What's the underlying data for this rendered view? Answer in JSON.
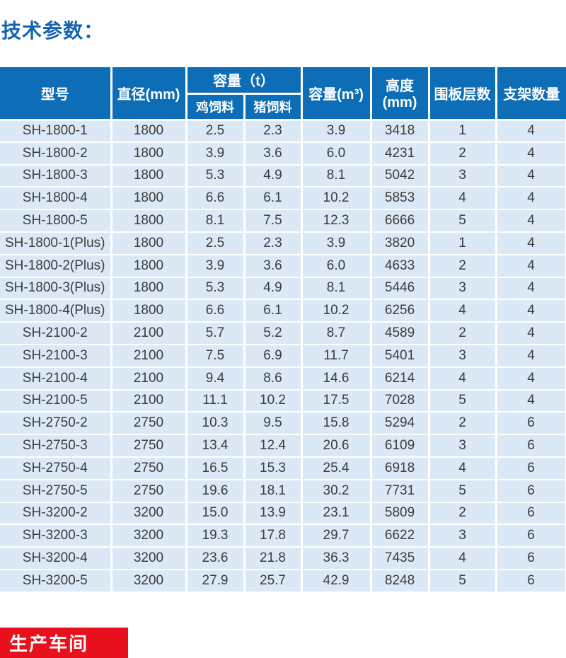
{
  "page": {
    "title": "技术参数：",
    "colors": {
      "title_blue": "#1263b2",
      "header_blue": "#0d6db6",
      "row_bg_light_blue": "#dbe8f5",
      "body_text": "#3c3c3c",
      "banner_red": "#e8101c"
    }
  },
  "table": {
    "headers": {
      "model": "型号",
      "diameter": "直径(mm)",
      "capacity_t_group": "容量（t）",
      "chicken_feed": "鸡饲料",
      "pig_feed": "猪饲料",
      "capacity_m3": "容量(m³)",
      "height": "高度(mm)",
      "panel_layers": "围板层数",
      "bracket_count": "支架数量"
    },
    "column_keys": [
      "model",
      "diameter-mm",
      "chicken-feed-t",
      "pig-feed-t",
      "capacity-m3",
      "height-mm",
      "panel-layers",
      "bracket-count"
    ],
    "rows": [
      [
        "SH-1800-1",
        "1800",
        "2.5",
        "2.3",
        "3.9",
        "3418",
        "1",
        "4"
      ],
      [
        "SH-1800-2",
        "1800",
        "3.9",
        "3.6",
        "6.0",
        "4231",
        "2",
        "4"
      ],
      [
        "SH-1800-3",
        "1800",
        "5.3",
        "4.9",
        "8.1",
        "5042",
        "3",
        "4"
      ],
      [
        "SH-1800-4",
        "1800",
        "6.6",
        "6.1",
        "10.2",
        "5853",
        "4",
        "4"
      ],
      [
        "SH-1800-5",
        "1800",
        "8.1",
        "7.5",
        "12.3",
        "6666",
        "5",
        "4"
      ],
      [
        "SH-1800-1(Plus)",
        "1800",
        "2.5",
        "2.3",
        "3.9",
        "3820",
        "1",
        "4"
      ],
      [
        "SH-1800-2(Plus)",
        "1800",
        "3.9",
        "3.6",
        "6.0",
        "4633",
        "2",
        "4"
      ],
      [
        "SH-1800-3(Plus)",
        "1800",
        "5.3",
        "4.9",
        "8.1",
        "5446",
        "3",
        "4"
      ],
      [
        "SH-1800-4(Plus)",
        "1800",
        "6.6",
        "6.1",
        "10.2",
        "6256",
        "4",
        "4"
      ],
      [
        "SH-2100-2",
        "2100",
        "5.7",
        "5.2",
        "8.7",
        "4589",
        "2",
        "4"
      ],
      [
        "SH-2100-3",
        "2100",
        "7.5",
        "6.9",
        "11.7",
        "5401",
        "3",
        "4"
      ],
      [
        "SH-2100-4",
        "2100",
        "9.4",
        "8.6",
        "14.6",
        "6214",
        "4",
        "4"
      ],
      [
        "SH-2100-5",
        "2100",
        "11.1",
        "10.2",
        "17.5",
        "7028",
        "5",
        "4"
      ],
      [
        "SH-2750-2",
        "2750",
        "10.3",
        "9.5",
        "15.8",
        "5294",
        "2",
        "6"
      ],
      [
        "SH-2750-3",
        "2750",
        "13.4",
        "12.4",
        "20.6",
        "6109",
        "3",
        "6"
      ],
      [
        "SH-2750-4",
        "2750",
        "16.5",
        "15.3",
        "25.4",
        "6918",
        "4",
        "6"
      ],
      [
        "SH-2750-5",
        "2750",
        "19.6",
        "18.1",
        "30.2",
        "7731",
        "5",
        "6"
      ],
      [
        "SH-3200-2",
        "3200",
        "15.0",
        "13.9",
        "23.1",
        "5809",
        "2",
        "6"
      ],
      [
        "SH-3200-3",
        "3200",
        "19.3",
        "17.8",
        "29.7",
        "6622",
        "3",
        "6"
      ],
      [
        "SH-3200-4",
        "3200",
        "23.6",
        "21.8",
        "36.3",
        "7435",
        "4",
        "6"
      ],
      [
        "SH-3200-5",
        "3200",
        "27.9",
        "25.7",
        "42.9",
        "8248",
        "5",
        "6"
      ]
    ]
  },
  "footer": {
    "banner_label": "生产车间"
  }
}
